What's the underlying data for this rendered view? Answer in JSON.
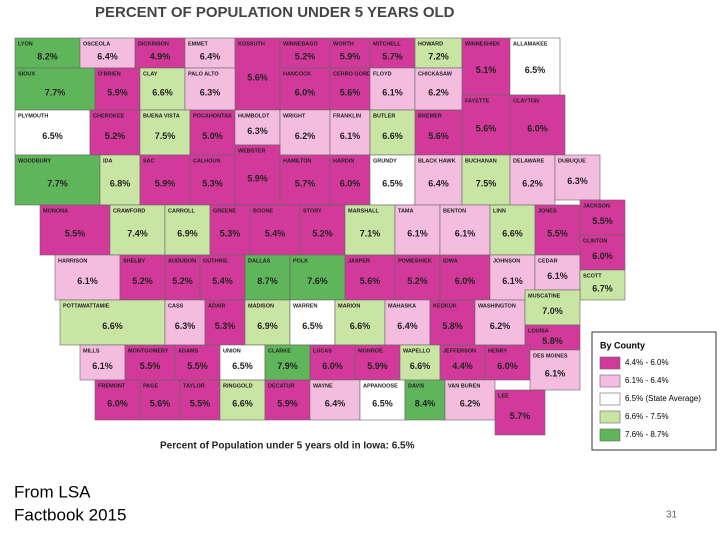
{
  "title": "PERCENT OF POPULATION UNDER 5 YEARS OLD",
  "legend": {
    "title": "By County",
    "classes": [
      {
        "label": "4.4% - 6.0%",
        "color": "#d2399a"
      },
      {
        "label": "6.1% - 6.4%",
        "color": "#f4bde0"
      },
      {
        "label": "6.5% (State Average)",
        "color": "#ffffff"
      },
      {
        "label": "6.6% - 7.5%",
        "color": "#c9e5a3"
      },
      {
        "label": "7.6% - 8.7%",
        "color": "#5fb65a"
      }
    ]
  },
  "counties": [
    {
      "name": "LYON",
      "value": "8.2%",
      "class": 4
    },
    {
      "name": "OSCEOLA",
      "value": "6.4%",
      "class": 1
    },
    {
      "name": "DICKINSON",
      "value": "4.9%",
      "class": 0
    },
    {
      "name": "EMMET",
      "value": "6.4%",
      "class": 1
    },
    {
      "name": "KOSSUTH",
      "value": "5.6%",
      "class": 0
    },
    {
      "name": "WINNEBAGO",
      "value": "5.2%",
      "class": 0
    },
    {
      "name": "WORTH",
      "value": "5.9%",
      "class": 0
    },
    {
      "name": "MITCHELL",
      "value": "5.7%",
      "class": 0
    },
    {
      "name": "HOWARD",
      "value": "7.2%",
      "class": 3
    },
    {
      "name": "WINNESHIEK",
      "value": "5.1%",
      "class": 0
    },
    {
      "name": "ALLAMAKEE",
      "value": "6.5%",
      "class": 2
    },
    {
      "name": "SIOUX",
      "value": "7.7%",
      "class": 4
    },
    {
      "name": "O'BRIEN",
      "value": "5.9%",
      "class": 0
    },
    {
      "name": "CLAY",
      "value": "6.6%",
      "class": 3
    },
    {
      "name": "PALO ALTO",
      "value": "6.3%",
      "class": 1
    },
    {
      "name": "HANCOCK",
      "value": "6.0%",
      "class": 0
    },
    {
      "name": "CERRO GORDO",
      "value": "5.6%",
      "class": 0
    },
    {
      "name": "FLOYD",
      "value": "6.1%",
      "class": 1
    },
    {
      "name": "CHICKASAW",
      "value": "6.2%",
      "class": 1
    },
    {
      "name": "FAYETTE",
      "value": "5.6%",
      "class": 0
    },
    {
      "name": "CLAYTON",
      "value": "6.0%",
      "class": 0
    },
    {
      "name": "PLYMOUTH",
      "value": "6.5%",
      "class": 2
    },
    {
      "name": "CHEROKEE",
      "value": "5.2%",
      "class": 0
    },
    {
      "name": "BUENA VISTA",
      "value": "7.5%",
      "class": 3
    },
    {
      "name": "POCAHONTAS",
      "value": "5.0%",
      "class": 0
    },
    {
      "name": "HUMBOLDT",
      "value": "6.3%",
      "class": 1
    },
    {
      "name": "WRIGHT",
      "value": "6.2%",
      "class": 1
    },
    {
      "name": "FRANKLIN",
      "value": "6.1%",
      "class": 1
    },
    {
      "name": "BUTLER",
      "value": "6.6%",
      "class": 3
    },
    {
      "name": "BREMER",
      "value": "5.6%",
      "class": 0
    },
    {
      "name": "WOODBURY",
      "value": "7.7%",
      "class": 4
    },
    {
      "name": "IDA",
      "value": "6.8%",
      "class": 3
    },
    {
      "name": "SAC",
      "value": "5.9%",
      "class": 0
    },
    {
      "name": "CALHOUN",
      "value": "5.3%",
      "class": 0
    },
    {
      "name": "WEBSTER",
      "value": "5.9%",
      "class": 0
    },
    {
      "name": "HAMILTON",
      "value": "5.7%",
      "class": 0
    },
    {
      "name": "HARDIN",
      "value": "6.0%",
      "class": 0
    },
    {
      "name": "GRUNDY",
      "value": "6.5%",
      "class": 2
    },
    {
      "name": "BLACK HAWK",
      "value": "6.4%",
      "class": 1
    },
    {
      "name": "BUCHANAN",
      "value": "7.5%",
      "class": 3
    },
    {
      "name": "DELAWARE",
      "value": "6.2%",
      "class": 1
    },
    {
      "name": "DUBUQUE",
      "value": "6.3%",
      "class": 1
    },
    {
      "name": "MONONA",
      "value": "5.5%",
      "class": 0
    },
    {
      "name": "CRAWFORD",
      "value": "7.4%",
      "class": 3
    },
    {
      "name": "CARROLL",
      "value": "6.9%",
      "class": 3
    },
    {
      "name": "GREENE",
      "value": "5.3%",
      "class": 0
    },
    {
      "name": "BOONE",
      "value": "5.4%",
      "class": 0
    },
    {
      "name": "STORY",
      "value": "5.2%",
      "class": 0
    },
    {
      "name": "MARSHALL",
      "value": "7.1%",
      "class": 3
    },
    {
      "name": "TAMA",
      "value": "6.1%",
      "class": 1
    },
    {
      "name": "BENTON",
      "value": "6.1%",
      "class": 1
    },
    {
      "name": "LINN",
      "value": "6.6%",
      "class": 3
    },
    {
      "name": "JONES",
      "value": "5.5%",
      "class": 0
    },
    {
      "name": "JACKSON",
      "value": "5.5%",
      "class": 0
    },
    {
      "name": "HARRISON",
      "value": "6.1%",
      "class": 1
    },
    {
      "name": "SHELBY",
      "value": "5.2%",
      "class": 0
    },
    {
      "name": "AUDUBON",
      "value": "5.2%",
      "class": 0
    },
    {
      "name": "GUTHRIE",
      "value": "5.4%",
      "class": 0
    },
    {
      "name": "DALLAS",
      "value": "8.7%",
      "class": 4
    },
    {
      "name": "POLK",
      "value": "7.6%",
      "class": 4
    },
    {
      "name": "JASPER",
      "value": "5.6%",
      "class": 0
    },
    {
      "name": "POWESHIEK",
      "value": "5.2%",
      "class": 0
    },
    {
      "name": "IOWA",
      "value": "6.0%",
      "class": 0
    },
    {
      "name": "JOHNSON",
      "value": "6.1%",
      "class": 1
    },
    {
      "name": "CEDAR",
      "value": "6.1%",
      "class": 1
    },
    {
      "name": "CLINTON",
      "value": "6.0%",
      "class": 0
    },
    {
      "name": "SCOTT",
      "value": "6.7%",
      "class": 3
    },
    {
      "name": "POTTAWATTAMIE",
      "value": "6.6%",
      "class": 3
    },
    {
      "name": "CASS",
      "value": "6.3%",
      "class": 1
    },
    {
      "name": "ADAIR",
      "value": "5.3%",
      "class": 0
    },
    {
      "name": "MADISON",
      "value": "6.9%",
      "class": 3
    },
    {
      "name": "WARREN",
      "value": "6.5%",
      "class": 2
    },
    {
      "name": "MARION",
      "value": "6.6%",
      "class": 3
    },
    {
      "name": "MAHASKA",
      "value": "6.4%",
      "class": 1
    },
    {
      "name": "KEOKUK",
      "value": "5.8%",
      "class": 0
    },
    {
      "name": "WASHINGTON",
      "value": "6.2%",
      "class": 1
    },
    {
      "name": "MUSCATINE",
      "value": "7.0%",
      "class": 3
    },
    {
      "name": "LOUISA",
      "value": "5.8%",
      "class": 0
    },
    {
      "name": "MILLS",
      "value": "6.1%",
      "class": 1
    },
    {
      "name": "MONTGOMERY",
      "value": "5.5%",
      "class": 0
    },
    {
      "name": "ADAMS",
      "value": "5.5%",
      "class": 0
    },
    {
      "name": "UNION",
      "value": "6.5%",
      "class": 2
    },
    {
      "name": "CLARKE",
      "value": "7.9%",
      "class": 4
    },
    {
      "name": "LUCAS",
      "value": "6.0%",
      "class": 0
    },
    {
      "name": "MONROE",
      "value": "5.9%",
      "class": 0
    },
    {
      "name": "WAPELLO",
      "value": "6.6%",
      "class": 3
    },
    {
      "name": "JEFFERSON",
      "value": "4.4%",
      "class": 0
    },
    {
      "name": "HENRY",
      "value": "6.0%",
      "class": 0
    },
    {
      "name": "DES MOINES",
      "value": "6.1%",
      "class": 1
    },
    {
      "name": "FREMONT",
      "value": "6.0%",
      "class": 0
    },
    {
      "name": "PAGE",
      "value": "5.6%",
      "class": 0
    },
    {
      "name": "TAYLOR",
      "value": "5.5%",
      "class": 0
    },
    {
      "name": "RINGGOLD",
      "value": "6.6%",
      "class": 3
    },
    {
      "name": "DECATUR",
      "value": "5.9%",
      "class": 0
    },
    {
      "name": "WAYNE",
      "value": "6.4%",
      "class": 1
    },
    {
      "name": "APPANOOSE",
      "value": "6.5%",
      "class": 2
    },
    {
      "name": "DAVIS",
      "value": "8.4%",
      "class": 4
    },
    {
      "name": "VAN BUREN",
      "value": "6.2%",
      "class": 1
    },
    {
      "name": "LEE",
      "value": "5.7%",
      "class": 0
    }
  ],
  "footnote": "Percent of Population under 5 years old in Iowa: 6.5%",
  "source": [
    "From LSA",
    "Factbook 2015"
  ],
  "page_number": "31"
}
